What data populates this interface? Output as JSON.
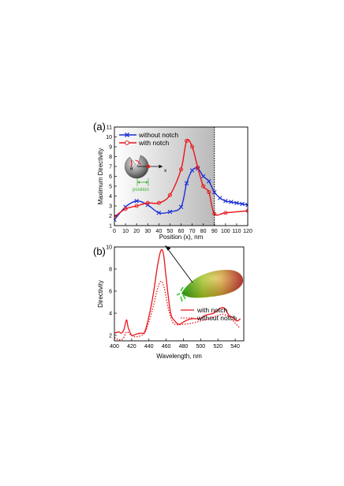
{
  "chart_data": [
    {
      "panel": "(a)",
      "type": "line",
      "xlabel": "Position (x), nm",
      "ylabel": "Maximum Directivity",
      "xlim": [
        0,
        120
      ],
      "ylim": [
        1,
        11
      ],
      "xticks": [
        0,
        10,
        20,
        30,
        40,
        50,
        60,
        70,
        80,
        90,
        100,
        110,
        120
      ],
      "yticks": [
        1,
        2,
        3,
        4,
        5,
        6,
        7,
        8,
        9,
        10,
        11
      ],
      "shaded_region": [
        0,
        90
      ],
      "dotted_vline_x": 90,
      "series": [
        {
          "name": "without notch",
          "color": "#1a2fd6",
          "marker": "x",
          "points": [
            [
              0,
              1.6
            ],
            [
              10,
              2.9
            ],
            [
              20,
              3.5
            ],
            [
              30,
              3.1
            ],
            [
              40,
              2.3
            ],
            [
              50,
              2.4
            ],
            [
              60,
              2.9
            ],
            [
              65,
              5.3
            ],
            [
              70,
              6.6
            ],
            [
              75,
              6.8
            ],
            [
              80,
              6.0
            ],
            [
              85,
              5.5
            ],
            [
              90,
              4.4
            ],
            [
              95,
              3.8
            ],
            [
              100,
              3.5
            ],
            [
              105,
              3.4
            ],
            [
              110,
              3.3
            ],
            [
              115,
              3.2
            ],
            [
              120,
              3.1
            ]
          ]
        },
        {
          "name": "with notch",
          "color": "#e8151b",
          "marker": "o",
          "points": [
            [
              0,
              1.9
            ],
            [
              10,
              2.7
            ],
            [
              20,
              3.0
            ],
            [
              30,
              3.3
            ],
            [
              40,
              3.3
            ],
            [
              50,
              4.1
            ],
            [
              60,
              6.7
            ],
            [
              65,
              9.6
            ],
            [
              70,
              9.0
            ],
            [
              75,
              6.9
            ],
            [
              80,
              5.0
            ],
            [
              85,
              4.4
            ],
            [
              90,
              2.2
            ],
            [
              100,
              2.3
            ],
            [
              120,
              2.5
            ]
          ]
        }
      ],
      "inset": {
        "theta_label": "θ",
        "axis_label": "x",
        "position_label": "position"
      }
    },
    {
      "panel": "(b)",
      "type": "line",
      "xlabel": "Wavelength, nm",
      "ylabel": "Directivity",
      "xlim": [
        400,
        550
      ],
      "ylim": [
        1.5,
        10
      ],
      "xticks": [
        400,
        420,
        440,
        460,
        480,
        500,
        520,
        540
      ],
      "yticks": [
        2,
        4,
        6,
        8,
        10
      ],
      "series": [
        {
          "name": "with notch",
          "color": "#e8151b",
          "style": "solid",
          "points": [
            [
              400,
              2.2
            ],
            [
              405,
              2.3
            ],
            [
              408,
              2.2
            ],
            [
              411,
              2.5
            ],
            [
              414,
              3.4
            ],
            [
              416,
              2.7
            ],
            [
              420,
              2.0
            ],
            [
              425,
              2.1
            ],
            [
              430,
              2.2
            ],
            [
              435,
              2.3
            ],
            [
              440,
              3.7
            ],
            [
              445,
              5.7
            ],
            [
              450,
              8.3
            ],
            [
              454,
              9.7
            ],
            [
              457,
              9.3
            ],
            [
              460,
              7.2
            ],
            [
              465,
              4.1
            ],
            [
              470,
              3.3
            ],
            [
              475,
              3.0
            ],
            [
              480,
              3.2
            ],
            [
              485,
              3.4
            ],
            [
              490,
              3.5
            ],
            [
              495,
              3.5
            ],
            [
              500,
              3.5
            ],
            [
              505,
              3.8
            ],
            [
              510,
              3.9
            ],
            [
              515,
              4.0
            ],
            [
              520,
              4.3
            ],
            [
              524,
              4.5
            ],
            [
              528,
              4.4
            ],
            [
              533,
              3.8
            ],
            [
              538,
              3.6
            ],
            [
              542,
              3.3
            ],
            [
              546,
              3.5
            ]
          ]
        },
        {
          "name": "without notch",
          "color": "#e8151b",
          "style": "dotted",
          "points": [
            [
              400,
              1.8
            ],
            [
              405,
              1.6
            ],
            [
              410,
              1.7
            ],
            [
              414,
              2.3
            ],
            [
              418,
              2.1
            ],
            [
              422,
              1.9
            ],
            [
              428,
              1.9
            ],
            [
              435,
              2.2
            ],
            [
              440,
              3.2
            ],
            [
              445,
              4.6
            ],
            [
              450,
              6.2
            ],
            [
              454,
              6.9
            ],
            [
              458,
              6.2
            ],
            [
              462,
              4.6
            ],
            [
              466,
              3.5
            ],
            [
              470,
              3.0
            ],
            [
              480,
              3.0
            ],
            [
              490,
              3.1
            ],
            [
              500,
              3.3
            ],
            [
              510,
              3.5
            ],
            [
              520,
              3.8
            ],
            [
              525,
              3.9
            ],
            [
              530,
              3.8
            ],
            [
              535,
              3.6
            ],
            [
              540,
              3.1
            ],
            [
              545,
              2.7
            ]
          ]
        }
      ]
    }
  ]
}
